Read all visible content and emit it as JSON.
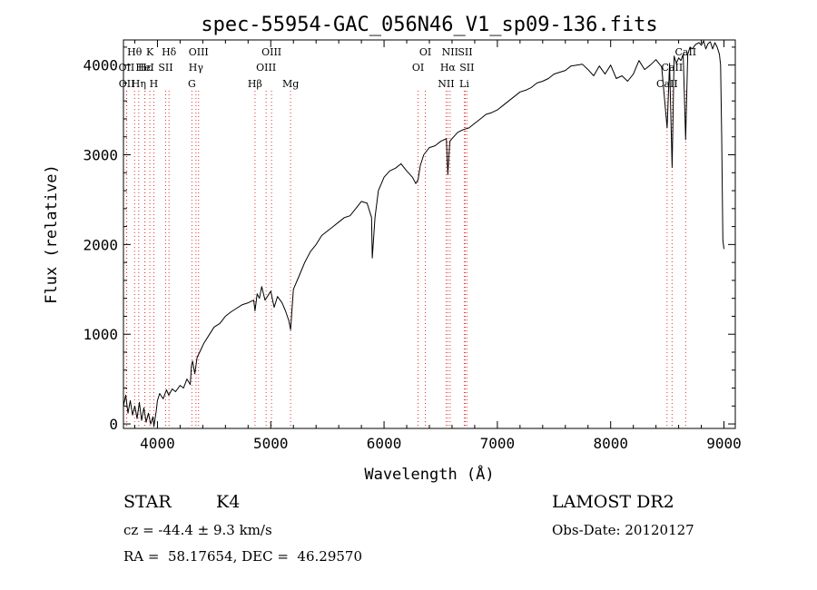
{
  "chart_data": {
    "type": "line",
    "title": "spec-55954-GAC_056N46_V1_sp09-136.fits",
    "xlabel": "Wavelength (Å)",
    "ylabel": "Flux (relative)",
    "xlim": [
      3700,
      9100
    ],
    "ylim": [
      -50,
      4280
    ],
    "x_ticks": [
      4000,
      5000,
      6000,
      7000,
      8000,
      9000
    ],
    "y_ticks": [
      0,
      1000,
      2000,
      3000,
      4000
    ],
    "series": [
      {
        "x": [
          3700,
          3720,
          3740,
          3760,
          3780,
          3800,
          3820,
          3840,
          3860,
          3880,
          3900,
          3920,
          3940,
          3960,
          3968,
          3990,
          4000,
          4020,
          4050,
          4080,
          4100,
          4130,
          4160,
          4200,
          4230,
          4260,
          4290,
          4300,
          4310,
          4330,
          4350,
          4380,
          4410,
          4450,
          4500,
          4550,
          4600,
          4650,
          4700,
          4750,
          4800,
          4850,
          4861,
          4880,
          4900,
          4920,
          4950,
          4980,
          5000,
          5030,
          5060,
          5100,
          5130,
          5160,
          5175,
          5200,
          5250,
          5300,
          5350,
          5400,
          5450,
          5500,
          5550,
          5600,
          5650,
          5700,
          5750,
          5800,
          5850,
          5890,
          5896,
          5920,
          5950,
          6000,
          6050,
          6100,
          6150,
          6200,
          6250,
          6280,
          6300,
          6320,
          6350,
          6400,
          6450,
          6500,
          6550,
          6563,
          6580,
          6600,
          6650,
          6700,
          6750,
          6800,
          6850,
          6900,
          6950,
          7000,
          7050,
          7100,
          7150,
          7200,
          7250,
          7300,
          7350,
          7400,
          7450,
          7500,
          7550,
          7600,
          7650,
          7700,
          7750,
          7800,
          7850,
          7900,
          7950,
          8000,
          8050,
          8100,
          8150,
          8200,
          8250,
          8300,
          8350,
          8400,
          8450,
          8498,
          8520,
          8542,
          8560,
          8580,
          8600,
          8620,
          8640,
          8662,
          8680,
          8700,
          8720,
          8750,
          8780,
          8800,
          8820,
          8840,
          8860,
          8880,
          8900,
          8920,
          8940,
          8960,
          8970,
          8980,
          8990,
          9000
        ],
        "y": [
          200,
          320,
          120,
          260,
          100,
          200,
          60,
          240,
          40,
          180,
          20,
          120,
          0,
          80,
          -30,
          150,
          260,
          340,
          280,
          380,
          320,
          390,
          360,
          430,
          400,
          500,
          440,
          650,
          700,
          560,
          740,
          820,
          900,
          980,
          1080,
          1120,
          1200,
          1250,
          1290,
          1330,
          1350,
          1380,
          1260,
          1450,
          1400,
          1530,
          1380,
          1440,
          1480,
          1300,
          1420,
          1350,
          1260,
          1150,
          1050,
          1500,
          1650,
          1800,
          1920,
          2000,
          2100,
          2150,
          2200,
          2250,
          2300,
          2320,
          2400,
          2480,
          2460,
          2300,
          1850,
          2300,
          2600,
          2750,
          2820,
          2850,
          2900,
          2820,
          2750,
          2680,
          2720,
          2880,
          3000,
          3080,
          3100,
          3150,
          3180,
          2780,
          3150,
          3180,
          3250,
          3280,
          3300,
          3350,
          3400,
          3450,
          3470,
          3500,
          3550,
          3600,
          3650,
          3700,
          3720,
          3750,
          3800,
          3820,
          3850,
          3900,
          3920,
          3940,
          3990,
          4000,
          4010,
          3950,
          3880,
          3990,
          3900,
          4000,
          3850,
          3880,
          3820,
          3900,
          4050,
          3950,
          4000,
          4060,
          3980,
          3300,
          4020,
          2860,
          4100,
          4020,
          4080,
          4050,
          4120,
          3170,
          4120,
          4200,
          4180,
          4230,
          4250,
          4220,
          4270,
          4180,
          4240,
          4260,
          4180,
          4250,
          4200,
          4120,
          4000,
          3200,
          2050,
          1950
        ]
      }
    ],
    "line_markers": [
      {
        "label": "Hθ",
        "x": 3798,
        "row": 1
      },
      {
        "label": "OII",
        "x": 3727,
        "row": 2
      },
      {
        "label": "OII",
        "x": 3729,
        "row": 3
      },
      {
        "label": "K",
        "x": 3933,
        "row": 1
      },
      {
        "label": "H",
        "x": 3968,
        "row": 3
      },
      {
        "label": "Hη",
        "x": 3835,
        "row": 3
      },
      {
        "label": "Hε",
        "x": 3889,
        "row": 2
      },
      {
        "label": "HeI",
        "x": 3889,
        "row": 2
      },
      {
        "label": "SII",
        "x": 4072,
        "row": 2
      },
      {
        "label": "Hδ",
        "x": 4102,
        "row": 1
      },
      {
        "label": "OIII",
        "x": 4363,
        "row": 1
      },
      {
        "label": "Hγ",
        "x": 4340,
        "row": 2
      },
      {
        "label": "G",
        "x": 4304,
        "row": 3
      },
      {
        "label": "OIII",
        "x": 5007,
        "row": 1
      },
      {
        "label": "OIII",
        "x": 4959,
        "row": 2
      },
      {
        "label": "Hβ",
        "x": 4861,
        "row": 3
      },
      {
        "label": "Mg",
        "x": 5175,
        "row": 3
      },
      {
        "label": "OI",
        "x": 6364,
        "row": 1
      },
      {
        "label": "OI",
        "x": 6300,
        "row": 2
      },
      {
        "label": "NII",
        "x": 6583,
        "row": 1
      },
      {
        "label": "SII",
        "x": 6716,
        "row": 1
      },
      {
        "label": "Hα",
        "x": 6563,
        "row": 2
      },
      {
        "label": "SII",
        "x": 6731,
        "row": 2
      },
      {
        "label": "NII",
        "x": 6548,
        "row": 3
      },
      {
        "label": "Li",
        "x": 6708,
        "row": 3
      },
      {
        "label": "CaII",
        "x": 8662,
        "row": 1
      },
      {
        "label": "CaII",
        "x": 8542,
        "row": 2
      },
      {
        "label": "CaII",
        "x": 8498,
        "row": 3
      }
    ]
  },
  "info": {
    "object_type": "STAR",
    "subclass": "K4",
    "survey": "LAMOST DR2",
    "cz_line": "cz = -44.4 ± 9.3 km/s",
    "obs_date_line": "Obs-Date: 20120127",
    "coords_line": "RA =  58.17654, DEC =  46.29570"
  },
  "colors": {
    "spectrum": "#000000",
    "marker_lines": "#e03030",
    "axes": "#000000"
  }
}
